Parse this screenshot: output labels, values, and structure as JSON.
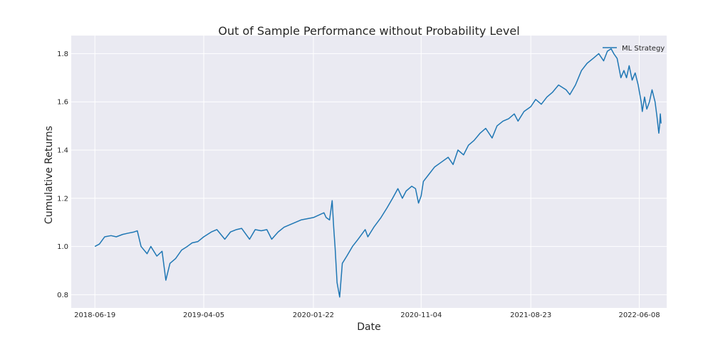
{
  "chart_data": {
    "type": "line",
    "title": "Out of Sample Performance without Probability Level",
    "xlabel": "Date",
    "ylabel": "Cumulative Returns",
    "x_tick_labels": [
      "2018-06-19",
      "2019-04-05",
      "2020-01-22",
      "2020-11-04",
      "2021-08-23",
      "2022-06-08"
    ],
    "y_ticks": [
      0.8,
      1.0,
      1.2,
      1.4,
      1.6,
      1.8
    ],
    "y_tick_labels": [
      "0.8",
      "1.0",
      "1.2",
      "1.4",
      "1.6",
      "1.8"
    ],
    "ylim": [
      0.745,
      1.875
    ],
    "xlim": [
      "2018-04-17",
      "2022-08-20"
    ],
    "grid": true,
    "legend_position": "top-right",
    "background_color": "#EAEAF2",
    "series": [
      {
        "name": "ML Strategy",
        "color": "#1F77B4",
        "points": [
          [
            "2018-06-19",
            1.0
          ],
          [
            "2018-07-01",
            1.01
          ],
          [
            "2018-07-15",
            1.04
          ],
          [
            "2018-08-01",
            1.045
          ],
          [
            "2018-08-15",
            1.04
          ],
          [
            "2018-09-01",
            1.05
          ],
          [
            "2018-09-15",
            1.055
          ],
          [
            "2018-10-01",
            1.06
          ],
          [
            "2018-10-10",
            1.065
          ],
          [
            "2018-10-20",
            1.0
          ],
          [
            "2018-11-05",
            0.97
          ],
          [
            "2018-11-15",
            1.0
          ],
          [
            "2018-12-01",
            0.96
          ],
          [
            "2018-12-15",
            0.98
          ],
          [
            "2018-12-25",
            0.86
          ],
          [
            "2019-01-05",
            0.93
          ],
          [
            "2019-01-20",
            0.95
          ],
          [
            "2019-02-05",
            0.985
          ],
          [
            "2019-02-20",
            1.0
          ],
          [
            "2019-03-05",
            1.015
          ],
          [
            "2019-03-20",
            1.02
          ],
          [
            "2019-04-05",
            1.04
          ],
          [
            "2019-04-25",
            1.06
          ],
          [
            "2019-05-10",
            1.07
          ],
          [
            "2019-05-31",
            1.03
          ],
          [
            "2019-06-15",
            1.06
          ],
          [
            "2019-07-01",
            1.07
          ],
          [
            "2019-07-15",
            1.075
          ],
          [
            "2019-08-05",
            1.03
          ],
          [
            "2019-08-20",
            1.07
          ],
          [
            "2019-09-05",
            1.065
          ],
          [
            "2019-09-20",
            1.07
          ],
          [
            "2019-10-03",
            1.03
          ],
          [
            "2019-10-20",
            1.06
          ],
          [
            "2019-11-05",
            1.08
          ],
          [
            "2019-11-20",
            1.09
          ],
          [
            "2019-12-05",
            1.1
          ],
          [
            "2019-12-20",
            1.11
          ],
          [
            "2020-01-05",
            1.115
          ],
          [
            "2020-01-22",
            1.12
          ],
          [
            "2020-02-05",
            1.13
          ],
          [
            "2020-02-19",
            1.14
          ],
          [
            "2020-02-25",
            1.12
          ],
          [
            "2020-03-05",
            1.11
          ],
          [
            "2020-03-12",
            1.19
          ],
          [
            "2020-03-16",
            1.08
          ],
          [
            "2020-03-20",
            0.99
          ],
          [
            "2020-03-25",
            0.85
          ],
          [
            "2020-04-01",
            0.79
          ],
          [
            "2020-04-08",
            0.93
          ],
          [
            "2020-04-20",
            0.96
          ],
          [
            "2020-05-05",
            1.0
          ],
          [
            "2020-05-20",
            1.03
          ],
          [
            "2020-06-08",
            1.07
          ],
          [
            "2020-06-15",
            1.04
          ],
          [
            "2020-07-01",
            1.08
          ],
          [
            "2020-07-20",
            1.12
          ],
          [
            "2020-08-05",
            1.16
          ],
          [
            "2020-08-20",
            1.2
          ],
          [
            "2020-09-03",
            1.24
          ],
          [
            "2020-09-15",
            1.2
          ],
          [
            "2020-09-25",
            1.23
          ],
          [
            "2020-10-10",
            1.25
          ],
          [
            "2020-10-20",
            1.24
          ],
          [
            "2020-10-28",
            1.18
          ],
          [
            "2020-11-04",
            1.21
          ],
          [
            "2020-11-10",
            1.27
          ],
          [
            "2020-11-25",
            1.3
          ],
          [
            "2020-12-10",
            1.33
          ],
          [
            "2020-12-28",
            1.35
          ],
          [
            "2021-01-15",
            1.37
          ],
          [
            "2021-01-28",
            1.34
          ],
          [
            "2021-02-10",
            1.4
          ],
          [
            "2021-02-25",
            1.38
          ],
          [
            "2021-03-10",
            1.42
          ],
          [
            "2021-03-25",
            1.44
          ],
          [
            "2021-04-10",
            1.47
          ],
          [
            "2021-04-25",
            1.49
          ],
          [
            "2021-05-12",
            1.45
          ],
          [
            "2021-05-25",
            1.5
          ],
          [
            "2021-06-10",
            1.52
          ],
          [
            "2021-06-25",
            1.53
          ],
          [
            "2021-07-10",
            1.55
          ],
          [
            "2021-07-20",
            1.52
          ],
          [
            "2021-08-05",
            1.56
          ],
          [
            "2021-08-23",
            1.58
          ],
          [
            "2021-09-05",
            1.61
          ],
          [
            "2021-09-20",
            1.59
          ],
          [
            "2021-10-05",
            1.62
          ],
          [
            "2021-10-20",
            1.64
          ],
          [
            "2021-11-05",
            1.67
          ],
          [
            "2021-11-25",
            1.65
          ],
          [
            "2021-12-05",
            1.63
          ],
          [
            "2021-12-20",
            1.67
          ],
          [
            "2022-01-05",
            1.73
          ],
          [
            "2022-01-20",
            1.76
          ],
          [
            "2022-02-05",
            1.78
          ],
          [
            "2022-02-20",
            1.8
          ],
          [
            "2022-03-05",
            1.77
          ],
          [
            "2022-03-15",
            1.81
          ],
          [
            "2022-03-25",
            1.82
          ],
          [
            "2022-04-01",
            1.8
          ],
          [
            "2022-04-10",
            1.78
          ],
          [
            "2022-04-20",
            1.7
          ],
          [
            "2022-04-28",
            1.73
          ],
          [
            "2022-05-05",
            1.7
          ],
          [
            "2022-05-12",
            1.75
          ],
          [
            "2022-05-20",
            1.69
          ],
          [
            "2022-05-28",
            1.72
          ],
          [
            "2022-06-05",
            1.67
          ],
          [
            "2022-06-13",
            1.6
          ],
          [
            "2022-06-16",
            1.56
          ],
          [
            "2022-06-22",
            1.62
          ],
          [
            "2022-06-28",
            1.57
          ],
          [
            "2022-07-05",
            1.6
          ],
          [
            "2022-07-12",
            1.65
          ],
          [
            "2022-07-20",
            1.6
          ],
          [
            "2022-07-25",
            1.54
          ],
          [
            "2022-07-30",
            1.47
          ],
          [
            "2022-08-01",
            1.5
          ],
          [
            "2022-08-03",
            1.55
          ],
          [
            "2022-08-05",
            1.51
          ]
        ]
      }
    ]
  }
}
